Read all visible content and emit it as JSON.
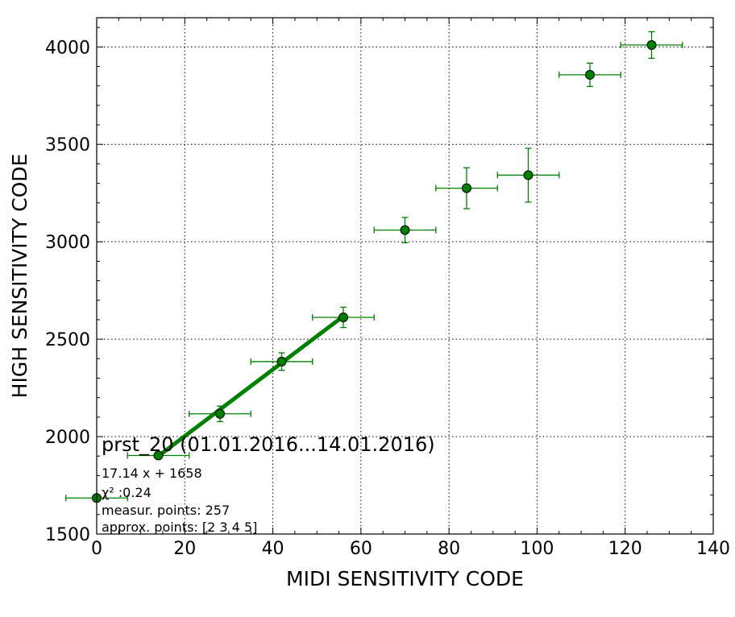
{
  "chart_data": {
    "type": "scatter",
    "title": "prst_20 (01.01.2016...14.01.2016)",
    "xlabel": "MIDI SENSITIVITY CODE",
    "ylabel": "HIGH SENSITIVITY CODE",
    "xlim": [
      0,
      140
    ],
    "ylim": [
      1500,
      4150
    ],
    "xticks": [
      0,
      20,
      40,
      60,
      80,
      100,
      120,
      140
    ],
    "yticks": [
      1500,
      2000,
      2500,
      3000,
      3500,
      4000
    ],
    "grid": true,
    "colors": {
      "series": "#008000",
      "line": "#008000",
      "grid": "#000000"
    },
    "series": [
      {
        "x": [
          0,
          14,
          28,
          42,
          56,
          70,
          84,
          98,
          112,
          126
        ],
        "y": [
          1685,
          1903,
          2117,
          2385,
          2612,
          3060,
          3275,
          3342,
          3857,
          4010
        ],
        "xerr": [
          7,
          7,
          7,
          7,
          7,
          7,
          7,
          7,
          7,
          7
        ],
        "yerr": [
          0,
          0,
          40,
          45,
          52,
          65,
          105,
          138,
          60,
          68
        ]
      }
    ],
    "fit_line": {
      "x": [
        14,
        56
      ],
      "y": [
        1900,
        2618
      ]
    },
    "annotations": [
      "17.14 x + 1658",
      "χ² :0.24",
      "measur. points: 257",
      "approx. points: [2 3 4 5]"
    ]
  }
}
